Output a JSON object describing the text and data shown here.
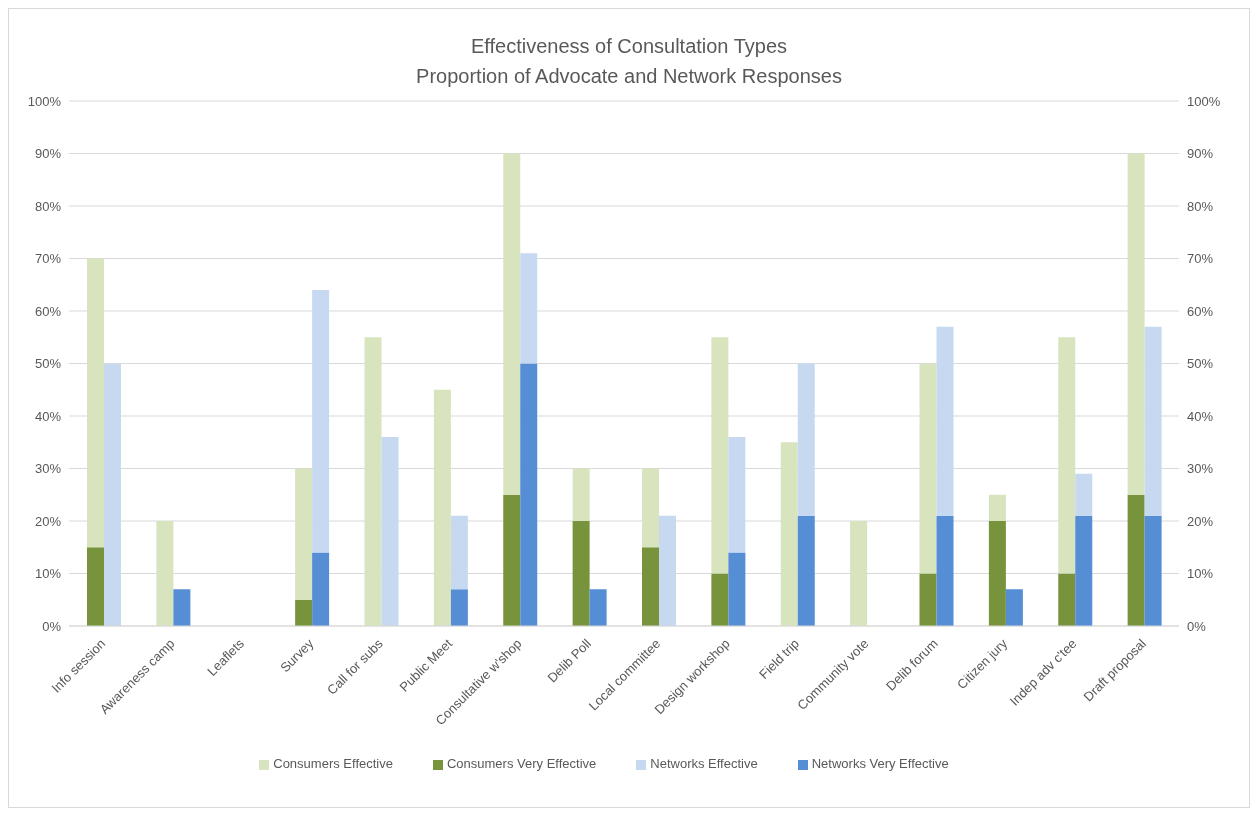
{
  "chart_data": {
    "type": "bar",
    "title": "Effectiveness of Consultation Types",
    "subtitle": "Proportion of Advocate and Network Responses",
    "categories": [
      "Info session",
      "Awareness camp",
      "Leaflets",
      "Survey",
      "Call for subs",
      "Public Meet",
      "Consultative w'shop",
      "Delib Poll",
      "Local committee",
      "Design workshop",
      "Field trip",
      "Community vote",
      "Delib forum",
      "Citizen jury",
      "Indep adv c'tee",
      "Draft proposal"
    ],
    "series": [
      {
        "name": "Consumers Very Effective",
        "color": "#77933c",
        "values": [
          15,
          0,
          0,
          5,
          0,
          0,
          25,
          20,
          15,
          10,
          0,
          0,
          10,
          20,
          10,
          25
        ]
      },
      {
        "name": "Consumers Effective",
        "color": "#d7e4bd",
        "values": [
          55,
          20,
          0,
          25,
          55,
          45,
          65,
          10,
          15,
          45,
          35,
          20,
          40,
          5,
          45,
          65
        ]
      },
      {
        "name": "Networks Very Effective",
        "color": "#558ed5",
        "axis": "y2",
        "values": [
          0,
          7,
          0,
          14,
          0,
          7,
          50,
          7,
          0,
          14,
          21,
          0,
          21,
          7,
          21,
          21
        ]
      },
      {
        "name": "Networks Effective",
        "color": "#c6d9f1",
        "axis": "y2",
        "values": [
          50,
          0,
          0,
          50,
          36,
          14,
          21,
          0,
          21,
          22,
          29,
          0,
          36,
          0,
          8,
          36
        ]
      }
    ],
    "stacked": true,
    "ylim": [
      0,
      100
    ],
    "yticks": [
      {
        "value": 0,
        "label": "0%"
      },
      {
        "value": 10,
        "label": "10%"
      },
      {
        "value": 20,
        "label": "20%"
      },
      {
        "value": 30,
        "label": "30%"
      },
      {
        "value": 40,
        "label": "40%"
      },
      {
        "value": 50,
        "label": "50%"
      },
      {
        "value": 60,
        "label": "60%"
      },
      {
        "value": 70,
        "label": "70%"
      },
      {
        "value": 80,
        "label": "80%"
      },
      {
        "value": 90,
        "label": "90%"
      },
      {
        "value": 100,
        "label": "100%"
      }
    ],
    "y2lim": [
      0,
      100
    ],
    "y2ticks": [
      {
        "value": 0,
        "label": "0%"
      },
      {
        "value": 10,
        "label": "10%"
      },
      {
        "value": 20,
        "label": "20%"
      },
      {
        "value": 30,
        "label": "30%"
      },
      {
        "value": 40,
        "label": "40%"
      },
      {
        "value": 50,
        "label": "50%"
      },
      {
        "value": 60,
        "label": "60%"
      },
      {
        "value": 70,
        "label": "70%"
      },
      {
        "value": 80,
        "label": "80%"
      },
      {
        "value": 90,
        "label": "90%"
      },
      {
        "value": 100,
        "label": "100%"
      }
    ],
    "grid": "y",
    "legend": "bottom"
  }
}
